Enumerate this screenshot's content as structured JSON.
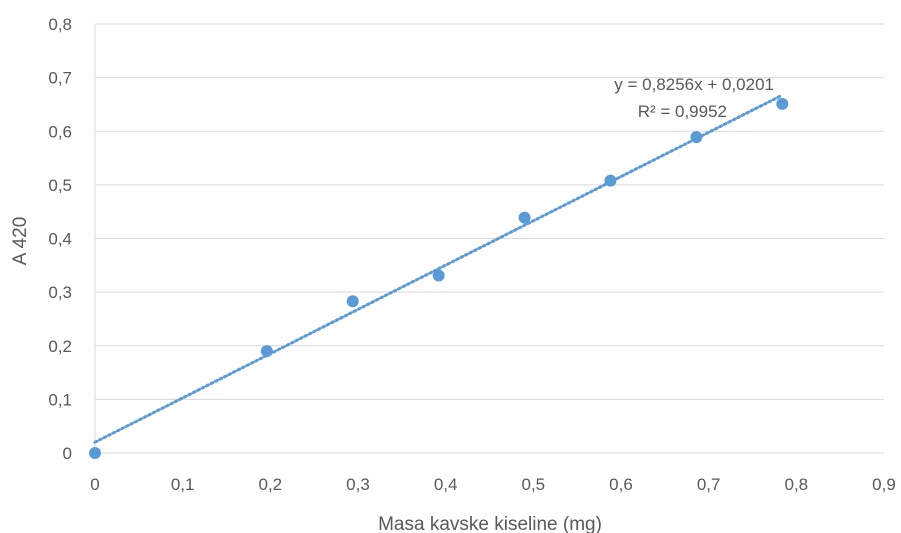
{
  "chart_data": {
    "type": "scatter",
    "title": "",
    "xlabel": "Masa kavske kiseline (mg)",
    "ylabel": "A 420",
    "xlim": [
      0,
      0.9
    ],
    "ylim": [
      0,
      0.8
    ],
    "x_ticks": [
      "0",
      "0,1",
      "0,2",
      "0,3",
      "0,4",
      "0,5",
      "0,6",
      "0,7",
      "0,8",
      "0,9"
    ],
    "y_ticks": [
      "0",
      "0,1",
      "0,2",
      "0,3",
      "0,4",
      "0,5",
      "0,6",
      "0,7",
      "0,8"
    ],
    "grid": "horizontal",
    "series": [
      {
        "color": "#5b9bd5",
        "x": [
          0,
          0.196,
          0.294,
          0.392,
          0.49,
          0.588,
          0.686,
          0.784
        ],
        "y": [
          0,
          0.19,
          0.283,
          0.331,
          0.439,
          0.508,
          0.589,
          0.651
        ]
      }
    ],
    "trendline": {
      "type": "linear",
      "slope": 0.8256,
      "intercept": 0.0201,
      "x_range": [
        0,
        0.784
      ],
      "style": "dotted",
      "color": "#5b9bd5",
      "equation_label": "y = 0,8256x + 0,0201",
      "r2_label": "R² = 0,9952"
    }
  }
}
